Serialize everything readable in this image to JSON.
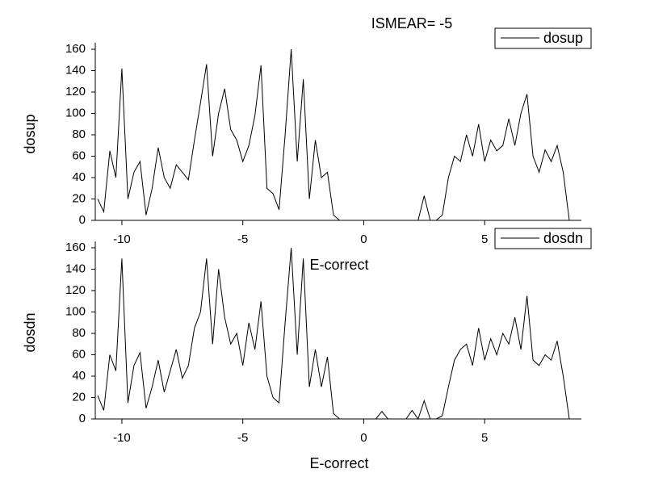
{
  "chart_data": [
    {
      "type": "line",
      "title": "ISMEAR= -5",
      "x_label": "E-correct",
      "y_label": "dosup",
      "x": [
        -11,
        -10.75,
        -10.5,
        -10.25,
        -10,
        -9.75,
        -9.5,
        -9.25,
        -9,
        -8.75,
        -8.5,
        -8.25,
        -8,
        -7.75,
        -7.5,
        -7.25,
        -7,
        -6.75,
        -6.5,
        -6.25,
        -6,
        -5.75,
        -5.5,
        -5.25,
        -5,
        -4.75,
        -4.5,
        -4.25,
        -4,
        -3.75,
        -3.5,
        -3.25,
        -3,
        -2.75,
        -2.5,
        -2.25,
        -2,
        -1.75,
        -1.5,
        -1.25,
        -1,
        -0.75,
        -0.5,
        -0.25,
        0,
        0.25,
        0.5,
        0.75,
        1,
        1.25,
        1.5,
        1.75,
        2,
        2.25,
        2.5,
        2.75,
        3,
        3.25,
        3.5,
        3.75,
        4,
        4.25,
        4.5,
        4.75,
        5,
        5.25,
        5.5,
        5.75,
        6,
        6.25,
        6.5,
        6.75,
        7,
        7.25,
        7.5,
        7.75,
        8,
        8.25,
        8.5
      ],
      "series": [
        {
          "name": "dosup",
          "color": "#000000",
          "values": [
            20,
            8,
            65,
            40,
            142,
            20,
            45,
            55,
            5,
            30,
            68,
            40,
            30,
            52,
            45,
            38,
            75,
            110,
            146,
            60,
            100,
            123,
            85,
            75,
            55,
            70,
            98,
            145,
            30,
            25,
            10,
            80,
            160,
            55,
            132,
            20,
            75,
            40,
            45,
            5,
            0,
            0,
            0,
            0,
            0,
            0,
            0,
            0,
            0,
            0,
            0,
            0,
            0,
            0,
            23,
            0,
            0,
            5,
            40,
            60,
            55,
            80,
            60,
            90,
            55,
            75,
            65,
            70,
            95,
            70,
            100,
            118,
            60,
            45,
            66,
            55,
            70,
            45,
            0
          ]
        }
      ],
      "xlim": [
        -11.1,
        9
      ],
      "ylim": [
        0,
        160
      ],
      "xticks": [
        -10,
        -5,
        0,
        5
      ],
      "yticks": [
        0,
        20,
        40,
        60,
        80,
        100,
        120,
        140,
        160
      ]
    },
    {
      "type": "line",
      "x_label": "E-correct",
      "y_label": "dosdn",
      "x": [
        -11,
        -10.75,
        -10.5,
        -10.25,
        -10,
        -9.75,
        -9.5,
        -9.25,
        -9,
        -8.75,
        -8.5,
        -8.25,
        -8,
        -7.75,
        -7.5,
        -7.25,
        -7,
        -6.75,
        -6.5,
        -6.25,
        -6,
        -5.75,
        -5.5,
        -5.25,
        -5,
        -4.75,
        -4.5,
        -4.25,
        -4,
        -3.75,
        -3.5,
        -3.25,
        -3,
        -2.75,
        -2.5,
        -2.25,
        -2,
        -1.75,
        -1.5,
        -1.25,
        -1,
        -0.75,
        -0.5,
        -0.25,
        0,
        0.25,
        0.5,
        0.75,
        1,
        1.25,
        1.5,
        1.75,
        2,
        2.25,
        2.5,
        2.75,
        3,
        3.25,
        3.5,
        3.75,
        4,
        4.25,
        4.5,
        4.75,
        5,
        5.25,
        5.5,
        5.75,
        6,
        6.25,
        6.5,
        6.75,
        7,
        7.25,
        7.5,
        7.75,
        8,
        8.25,
        8.5
      ],
      "series": [
        {
          "name": "dosdn",
          "color": "#000000",
          "values": [
            22,
            8,
            60,
            45,
            150,
            15,
            50,
            62,
            10,
            30,
            55,
            25,
            45,
            65,
            38,
            50,
            85,
            100,
            150,
            70,
            140,
            95,
            70,
            80,
            50,
            90,
            65,
            110,
            40,
            20,
            15,
            90,
            160,
            60,
            150,
            30,
            65,
            30,
            58,
            5,
            0,
            0,
            0,
            0,
            0,
            0,
            0,
            7,
            0,
            0,
            0,
            0,
            8,
            0,
            17,
            0,
            0,
            3,
            30,
            55,
            65,
            70,
            50,
            85,
            55,
            75,
            60,
            80,
            70,
            95,
            65,
            115,
            55,
            50,
            60,
            55,
            73,
            40,
            0
          ]
        }
      ],
      "xlim": [
        -11.1,
        9
      ],
      "ylim": [
        0,
        160
      ],
      "xticks": [
        -10,
        -5,
        0,
        5
      ],
      "yticks": [
        0,
        20,
        40,
        60,
        80,
        100,
        120,
        140,
        160
      ]
    }
  ]
}
